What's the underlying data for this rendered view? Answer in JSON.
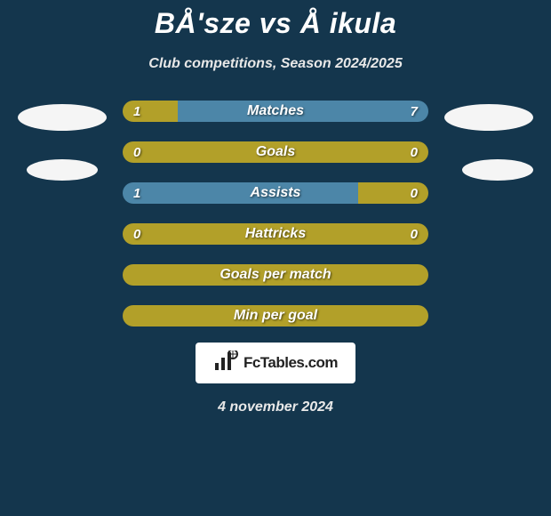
{
  "title": "BÅ'sze vs Å ikula",
  "subtitle": "Club competitions, Season 2024/2025",
  "footer_date": "4 november 2024",
  "logo_text": "FcTables.com",
  "colors": {
    "background": "#14364d",
    "bar_yellow": "#b2a029",
    "bar_blue": "#4c86a8",
    "avatar": "#f5f5f5",
    "logo_bg": "#ffffff",
    "logo_text": "#222222"
  },
  "stats": [
    {
      "label": "Matches",
      "left_value": "1",
      "right_value": "7",
      "show_values": true,
      "left_pct": 18,
      "right_pct": 82,
      "left_color": "#b2a029",
      "right_color": "#4c86a8"
    },
    {
      "label": "Goals",
      "left_value": "0",
      "right_value": "0",
      "show_values": true,
      "left_pct": 100,
      "right_pct": 0,
      "left_color": "#b2a029",
      "right_color": "#b2a029"
    },
    {
      "label": "Assists",
      "left_value": "1",
      "right_value": "0",
      "show_values": true,
      "left_pct": 77,
      "right_pct": 23,
      "left_color": "#4c86a8",
      "right_color": "#b2a029"
    },
    {
      "label": "Hattricks",
      "left_value": "0",
      "right_value": "0",
      "show_values": true,
      "left_pct": 100,
      "right_pct": 0,
      "left_color": "#b2a029",
      "right_color": "#b2a029"
    },
    {
      "label": "Goals per match",
      "left_value": "",
      "right_value": "",
      "show_values": false,
      "left_pct": 100,
      "right_pct": 0,
      "left_color": "#b2a029",
      "right_color": "#b2a029"
    },
    {
      "label": "Min per goal",
      "left_value": "",
      "right_value": "",
      "show_values": false,
      "left_pct": 100,
      "right_pct": 0,
      "left_color": "#b2a029",
      "right_color": "#b2a029"
    }
  ]
}
